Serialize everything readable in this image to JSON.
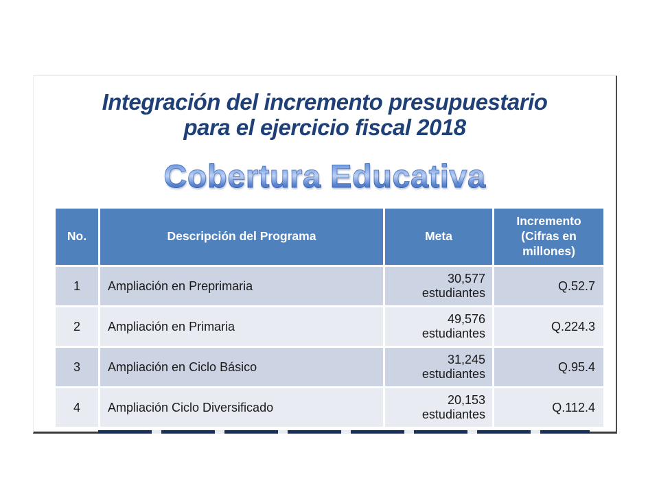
{
  "slide": {
    "title": {
      "line1": "Integración del incremento presupuestario",
      "line2": "para el ejercicio fiscal 2018"
    },
    "subtitle": "Cobertura Educativa"
  },
  "table": {
    "columns": {
      "no": "No.",
      "description": "Descripción del Programa",
      "meta": "Meta",
      "increment": "Incremento (Cifras en millones)"
    },
    "rows": [
      {
        "no": "1",
        "description": "Ampliación en Preprimaria",
        "meta_value": "30,577",
        "meta_unit": "estudiantes",
        "increment": "Q.52.7"
      },
      {
        "no": "2",
        "description": "Ampliación en Primaria",
        "meta_value": "49,576",
        "meta_unit": "estudiantes",
        "increment": "Q.224.3"
      },
      {
        "no": "3",
        "description": "Ampliación en Ciclo Básico",
        "meta_value": "31,245",
        "meta_unit": "estudiantes",
        "increment": "Q.95.4"
      },
      {
        "no": "4",
        "description": "Ampliación Ciclo Diversificado",
        "meta_value": "20,153",
        "meta_unit": "estudiantes",
        "increment": "Q.112.4"
      }
    ]
  },
  "colors": {
    "title_navy": "#1e4077",
    "header_blue": "#4f81bd",
    "row_band_dark": "#ccd3e2",
    "row_band_light": "#e9ebf3",
    "wordart_light": "#bdd1f4",
    "wordart_dark": "#2d59a8"
  }
}
